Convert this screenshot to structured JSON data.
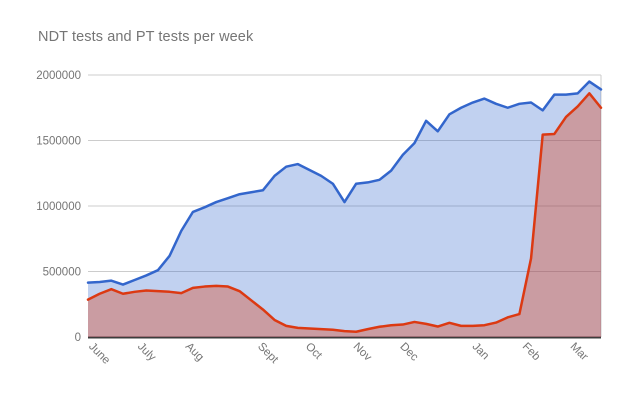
{
  "title": "NDT tests and PT tests per week",
  "chart_data": {
    "type": "area",
    "title": "NDT tests and PT tests per week",
    "legend_position": "none",
    "grid": true,
    "x_axis": {
      "unit": "week",
      "tick_labels": [
        "June",
        "July",
        "Aug",
        "Sept",
        "Oct",
        "Nov",
        "Dec",
        "Jan",
        "Feb",
        "Mar"
      ],
      "tick_positions_weeks": [
        0.7,
        4.9,
        9.0,
        15.2,
        19.3,
        23.4,
        27.4,
        33.6,
        37.9,
        42.0
      ],
      "label_rotation_deg": 45
    },
    "y_axis": {
      "range": [
        0,
        2000000
      ],
      "ticks": [
        0,
        500000,
        1000000,
        1500000,
        2000000
      ],
      "tick_labels": [
        "0",
        "500000",
        "1000000",
        "1500000",
        "2000000"
      ]
    },
    "series": [
      {
        "name": "NDT tests",
        "line_color": "#3366cc",
        "fill_color": "rgba(51,102,204,0.30)",
        "values": [
          415000,
          420000,
          430000,
          400000,
          435000,
          470000,
          510000,
          620000,
          810000,
          955000,
          990000,
          1030000,
          1060000,
          1090000,
          1105000,
          1120000,
          1230000,
          1300000,
          1320000,
          1275000,
          1230000,
          1170000,
          1030000,
          1170000,
          1180000,
          1200000,
          1270000,
          1390000,
          1480000,
          1650000,
          1570000,
          1700000,
          1750000,
          1790000,
          1820000,
          1780000,
          1750000,
          1780000,
          1790000,
          1730000,
          1850000,
          1850000,
          1860000,
          1950000,
          1890000
        ]
      },
      {
        "name": "PT tests",
        "line_color": "#dc3912",
        "fill_color": "rgba(220,57,18,0.35)",
        "values": [
          285000,
          330000,
          365000,
          330000,
          345000,
          355000,
          350000,
          345000,
          335000,
          375000,
          385000,
          390000,
          385000,
          350000,
          280000,
          210000,
          130000,
          85000,
          70000,
          65000,
          60000,
          55000,
          45000,
          40000,
          60000,
          78000,
          90000,
          95000,
          115000,
          100000,
          80000,
          108000,
          85000,
          85000,
          90000,
          110000,
          150000,
          175000,
          600000,
          1545000,
          1550000,
          1680000,
          1760000,
          1860000,
          1750000
        ]
      }
    ],
    "style": {
      "gridline_color": "#cccccc",
      "baseline_color": "#3c3c3c",
      "axis_label_color": "#757575",
      "title_color": "#757575",
      "background": "#ffffff"
    }
  }
}
